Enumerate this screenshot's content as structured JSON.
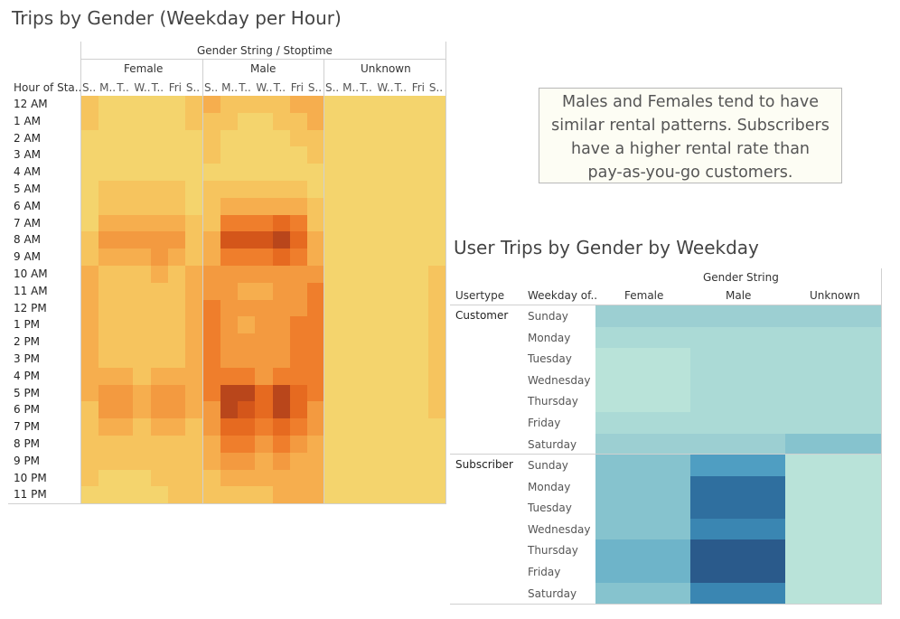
{
  "colors": {
    "heat_scale": [
      "#f4d46d",
      "#f6c45e",
      "#f6ae4e",
      "#f39a40",
      "#ef7e2c",
      "#e66a20",
      "#d4561a",
      "#b9461b"
    ],
    "teal_scale": [
      "#b9e3d9",
      "#abdad6",
      "#9ccfd2",
      "#86c3ce",
      "#6eb4c9",
      "#4f9ec2",
      "#3a86b2",
      "#2f6f9f",
      "#2a5a8b"
    ]
  },
  "chart_data": [
    {
      "type": "heatmap",
      "title": "Trips by Gender (Weekday per Hour)",
      "column_header": "Gender String / Stoptime",
      "row_header": "Hour of Sta..",
      "groups": [
        "Female",
        "Male",
        "Unknown"
      ],
      "day_labels": [
        "S..",
        "M..",
        "T..",
        "W..",
        "T..",
        "Fri",
        "S.."
      ],
      "rows": [
        "12 AM",
        "1 AM",
        "2 AM",
        "3 AM",
        "4 AM",
        "5 AM",
        "6 AM",
        "7 AM",
        "8 AM",
        "9 AM",
        "10 AM",
        "11 AM",
        "12 PM",
        "1 PM",
        "2 PM",
        "3 PM",
        "4 PM",
        "5 PM",
        "6 PM",
        "7 PM",
        "8 PM",
        "9 PM",
        "10 PM",
        "11 PM"
      ],
      "values": [
        [
          1,
          0,
          0,
          0,
          0,
          0,
          1,
          2,
          1,
          1,
          1,
          1,
          2,
          2,
          0,
          0,
          0,
          0,
          0,
          0,
          0
        ],
        [
          1,
          0,
          0,
          0,
          0,
          0,
          1,
          1,
          1,
          0,
          0,
          1,
          1,
          2,
          0,
          0,
          0,
          0,
          0,
          0,
          0
        ],
        [
          0,
          0,
          0,
          0,
          0,
          0,
          0,
          1,
          0,
          0,
          0,
          0,
          1,
          1,
          0,
          0,
          0,
          0,
          0,
          0,
          0
        ],
        [
          0,
          0,
          0,
          0,
          0,
          0,
          0,
          1,
          0,
          0,
          0,
          0,
          0,
          1,
          0,
          0,
          0,
          0,
          0,
          0,
          0
        ],
        [
          0,
          0,
          0,
          0,
          0,
          0,
          0,
          0,
          0,
          0,
          0,
          0,
          0,
          0,
          0,
          0,
          0,
          0,
          0,
          0,
          0
        ],
        [
          0,
          1,
          1,
          1,
          1,
          1,
          0,
          1,
          1,
          1,
          1,
          1,
          1,
          0,
          0,
          0,
          0,
          0,
          0,
          0,
          0
        ],
        [
          0,
          1,
          1,
          1,
          1,
          1,
          0,
          1,
          2,
          2,
          2,
          2,
          2,
          1,
          0,
          0,
          0,
          0,
          0,
          0,
          0
        ],
        [
          0,
          2,
          2,
          2,
          2,
          2,
          1,
          1,
          4,
          4,
          4,
          5,
          4,
          1,
          0,
          0,
          0,
          0,
          0,
          0,
          0
        ],
        [
          1,
          3,
          3,
          3,
          3,
          3,
          1,
          2,
          6,
          6,
          6,
          7,
          5,
          2,
          0,
          0,
          0,
          0,
          0,
          0,
          0
        ],
        [
          1,
          2,
          2,
          2,
          3,
          2,
          1,
          2,
          4,
          4,
          4,
          5,
          4,
          2,
          0,
          0,
          0,
          0,
          0,
          0,
          0
        ],
        [
          2,
          1,
          1,
          1,
          2,
          1,
          2,
          3,
          3,
          3,
          3,
          3,
          3,
          3,
          0,
          0,
          0,
          0,
          0,
          0,
          1
        ],
        [
          2,
          1,
          1,
          1,
          1,
          1,
          2,
          3,
          3,
          2,
          2,
          3,
          3,
          4,
          0,
          0,
          0,
          0,
          0,
          0,
          1
        ],
        [
          2,
          1,
          1,
          1,
          1,
          1,
          2,
          4,
          3,
          3,
          3,
          3,
          3,
          4,
          0,
          0,
          0,
          0,
          0,
          0,
          1
        ],
        [
          2,
          1,
          1,
          1,
          1,
          1,
          2,
          4,
          3,
          2,
          3,
          3,
          4,
          4,
          0,
          0,
          0,
          0,
          0,
          0,
          1
        ],
        [
          2,
          1,
          1,
          1,
          1,
          1,
          2,
          4,
          3,
          3,
          3,
          3,
          4,
          4,
          0,
          0,
          0,
          0,
          0,
          0,
          1
        ],
        [
          2,
          1,
          1,
          1,
          1,
          1,
          2,
          4,
          3,
          3,
          3,
          3,
          4,
          4,
          0,
          0,
          0,
          0,
          0,
          0,
          1
        ],
        [
          2,
          2,
          2,
          1,
          2,
          2,
          2,
          4,
          4,
          4,
          3,
          4,
          4,
          4,
          0,
          0,
          0,
          0,
          0,
          0,
          1
        ],
        [
          2,
          3,
          3,
          2,
          3,
          3,
          2,
          4,
          7,
          7,
          5,
          7,
          5,
          4,
          0,
          0,
          0,
          0,
          0,
          0,
          1
        ],
        [
          1,
          3,
          3,
          2,
          3,
          3,
          2,
          3,
          7,
          6,
          5,
          7,
          5,
          3,
          0,
          0,
          0,
          0,
          0,
          0,
          1
        ],
        [
          1,
          2,
          2,
          1,
          2,
          2,
          1,
          3,
          5,
          5,
          4,
          5,
          4,
          3,
          0,
          0,
          0,
          0,
          0,
          0,
          0
        ],
        [
          1,
          1,
          1,
          1,
          1,
          1,
          1,
          2,
          4,
          4,
          3,
          4,
          3,
          2,
          0,
          0,
          0,
          0,
          0,
          0,
          0
        ],
        [
          1,
          1,
          1,
          1,
          1,
          1,
          1,
          2,
          3,
          3,
          2,
          3,
          2,
          2,
          0,
          0,
          0,
          0,
          0,
          0,
          0
        ],
        [
          1,
          0,
          0,
          0,
          1,
          1,
          1,
          1,
          2,
          2,
          2,
          2,
          2,
          2,
          0,
          0,
          0,
          0,
          0,
          0,
          0
        ],
        [
          0,
          0,
          0,
          0,
          0,
          1,
          1,
          1,
          1,
          1,
          1,
          2,
          2,
          2,
          0,
          0,
          0,
          0,
          0,
          0,
          0
        ]
      ]
    },
    {
      "type": "heatmap",
      "title": "User Trips by Gender by Weekday",
      "column_header": "Gender String",
      "row_header_1": "Usertype",
      "row_header_2": "Weekday of..",
      "columns": [
        "Female",
        "Male",
        "Unknown"
      ],
      "usertypes": [
        "Customer",
        "Subscriber"
      ],
      "days": [
        "Sunday",
        "Monday",
        "Tuesday",
        "Wednesday",
        "Thursday",
        "Friday",
        "Saturday"
      ],
      "values": [
        [
          2,
          2,
          2
        ],
        [
          1,
          1,
          1
        ],
        [
          0,
          1,
          1
        ],
        [
          0,
          1,
          1
        ],
        [
          0,
          1,
          1
        ],
        [
          1,
          1,
          1
        ],
        [
          2,
          2,
          3
        ],
        [
          3,
          5,
          0
        ],
        [
          3,
          7,
          0
        ],
        [
          3,
          7,
          0
        ],
        [
          3,
          6,
          0
        ],
        [
          4,
          8,
          0
        ],
        [
          4,
          8,
          0
        ],
        [
          3,
          6,
          0
        ]
      ]
    }
  ],
  "note": {
    "lines": [
      "Males and Females tend to have",
      "similar rental patterns.  Subscribers",
      "have a higher rental rate than",
      "pay-as-you-go customers."
    ]
  }
}
